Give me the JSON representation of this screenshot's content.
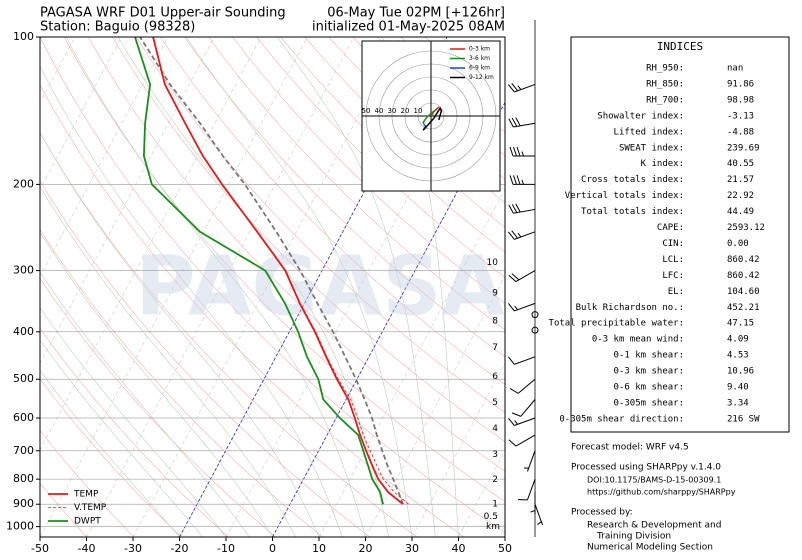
{
  "chart_data": {
    "type": "skewt",
    "title_left": "PAGASA WRF D01 Upper-air Sounding",
    "subtitle_left": "Station: Baguio (98328)",
    "title_right": "06-May Tue 02PM [+126hr]",
    "subtitle_right": "initialized 01-May-2025 08AM",
    "watermark": "PAGASA",
    "xlim": [
      -50,
      50
    ],
    "xticks": [
      -50,
      -40,
      -30,
      -20,
      -10,
      0,
      10,
      20,
      30,
      40,
      50
    ],
    "ylim": [
      1050,
      100
    ],
    "yticks": [
      100,
      200,
      300,
      400,
      500,
      600,
      700,
      800,
      900,
      1000
    ],
    "log_y": true,
    "grid": true,
    "highlight_isotherms": [
      -20,
      0
    ],
    "levels": [
      900,
      850,
      800,
      750,
      700,
      650,
      600,
      550,
      500,
      450,
      400,
      350,
      300,
      250,
      200,
      175,
      150,
      125,
      100
    ],
    "series": [
      {
        "name": "TEMP",
        "color": "#e41a1c",
        "dash": false,
        "values": [
          24.3,
          19.7,
          16.1,
          13.2,
          10.2,
          7.1,
          4.0,
          0.5,
          -4.3,
          -9.2,
          -14.5,
          -21,
          -27.9,
          -38.4,
          -51.4,
          -58.8,
          -66.4,
          -75.2,
          -83.2
        ]
      },
      {
        "name": "V.TEMP",
        "color": "#e41a1c",
        "dash": true,
        "values": [
          25.5,
          21,
          17.2,
          14.2,
          11.1,
          7.8,
          4.6,
          1,
          -4,
          -9,
          -14.3,
          -20.9,
          -27.8,
          null,
          null,
          null,
          null,
          null,
          null
        ]
      },
      {
        "name": "DWPT",
        "color": "#1a8f1a",
        "dash": false,
        "values": [
          20,
          18,
          14.8,
          12.3,
          9.6,
          6.7,
          0.8,
          -4.9,
          -8.3,
          -13.3,
          -18.1,
          -24.2,
          -32.2,
          -50.7,
          -66.5,
          -71.5,
          -75,
          -78.4,
          -87.1
        ]
      }
    ],
    "parcel": {
      "color": "#777777",
      "values": [
        24.3,
        21.9,
        19.3,
        16.5,
        13.7,
        10.7,
        7.7,
        4.0,
        -0.2,
        -5.1,
        -10.6,
        -17.2,
        -24.7,
        -34.3,
        -46.5,
        -54.5,
        -63.2,
        -74.1,
        -86
      ]
    },
    "km_levels": {
      "km": [
        10,
        9,
        8,
        7,
        6,
        5,
        4,
        3,
        2,
        1,
        0.5
      ],
      "pressure": [
        289,
        333,
        380,
        431,
        494,
        558,
        631,
        713,
        802,
        900,
        954
      ],
      "unit": "km"
    },
    "winds": {
      "pressure": [
        125,
        150,
        175,
        200,
        225,
        250,
        300,
        350,
        369,
        397,
        450,
        500,
        550,
        600,
        650,
        700,
        800,
        850,
        900
      ],
      "speed": [
        25,
        30,
        35,
        35,
        30,
        25,
        20,
        15,
        0,
        0,
        10,
        10,
        10,
        15,
        10,
        5,
        10,
        5,
        5
      ],
      "direction": [
        250,
        260,
        270,
        270,
        260,
        250,
        240,
        250,
        0,
        0,
        250,
        230,
        220,
        250,
        240,
        200,
        200,
        180,
        160
      ]
    },
    "hodograph": {
      "rings": [
        10,
        20,
        30,
        40,
        50
      ],
      "series": [
        {
          "name": "0-3 km",
          "color": "#e41a1c",
          "u": [
            0,
            2,
            5,
            6,
            4
          ],
          "v": [
            0,
            3,
            6,
            7,
            5
          ]
        },
        {
          "name": "3-6 km",
          "color": "#1a8f1a",
          "u": [
            4,
            0,
            -4,
            -6,
            -5
          ],
          "v": [
            5,
            2,
            -2,
            -5,
            -7
          ]
        },
        {
          "name": "6-9 km",
          "color": "#1f3fd6",
          "u": [
            -5,
            -4,
            -5,
            -6
          ],
          "v": [
            -7,
            -8,
            -9,
            -11
          ]
        },
        {
          "name": "9-12 km",
          "color": "#000000",
          "u": [
            -6,
            2,
            7,
            8,
            6
          ],
          "v": [
            -11,
            -2,
            6,
            4,
            -3
          ]
        }
      ]
    }
  },
  "indices": {
    "title": "INDICES",
    "rows": [
      [
        "RH_950:",
        "nan"
      ],
      [
        "RH_850:",
        "91.86"
      ],
      [
        "RH_700:",
        "98.98"
      ],
      [
        "Showalter index:",
        "-3.13"
      ],
      [
        "Lifted index:",
        "-4.88"
      ],
      [
        "SWEAT index:",
        "239.69"
      ],
      [
        "K index:",
        "40.55"
      ],
      [
        "Cross totals index:",
        "21.57"
      ],
      [
        "Vertical totals index:",
        "22.92"
      ],
      [
        "Total totals index:",
        "44.49"
      ],
      [
        "CAPE:",
        "2593.12"
      ],
      [
        "CIN:",
        "0.00"
      ],
      [
        "LCL:",
        "860.42"
      ],
      [
        "LFC:",
        "860.42"
      ],
      [
        "EL:",
        "104.60"
      ],
      [
        "Bulk Richardson no.:",
        "452.21"
      ],
      [
        "Total precipitable water:",
        "47.15"
      ],
      [
        "0-3 km mean wind:",
        "4.09"
      ],
      [
        "0-1 km shear:",
        "4.53"
      ],
      [
        "0-3 km shear:",
        "10.96"
      ],
      [
        "0-6 km shear:",
        "9.40"
      ],
      [
        "0-305m shear:",
        "3.34"
      ],
      [
        "0-305m shear direction:",
        "216 SW"
      ]
    ]
  },
  "footer": {
    "model": "Forecast model: WRF v4.5",
    "processed": "Processed using SHARPpy v.1.4.0",
    "doi": "DOI:10.1175/BAMS-D-15-00309.1",
    "url": "https://github.com/sharppy/SHARPpy",
    "by": "Processed by:",
    "org1": "Research & Development and",
    "org2": "Training Division",
    "org3": "Numerical Modeling Section"
  }
}
